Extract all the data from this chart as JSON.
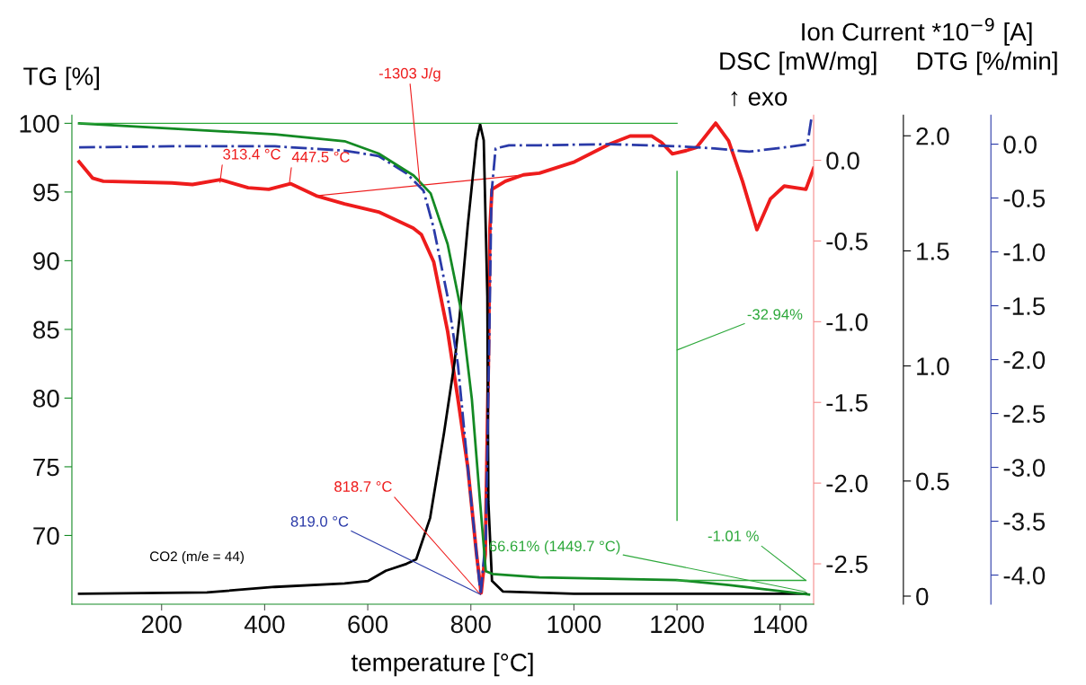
{
  "chart_data": [
    {
      "type": "line",
      "xlabel": "temperature [°C]",
      "ylabel": "TG [%]",
      "y2label": "DSC [mW/mg]",
      "y3label": "Ion Current *10$^{−9}$ [A]",
      "xlim": [
        26,
        1465
      ],
      "xticks": [
        200,
        400,
        600,
        800,
        1000,
        1200,
        1400
      ],
      "ylim": [
        65.0,
        100.6
      ],
      "yticks": [
        70,
        75,
        80,
        85,
        90,
        95,
        100
      ],
      "y2lim": [
        -2.75,
        0.28
      ],
      "y2ticks": [
        {
          "value": -2.5,
          "label": "-2.5"
        },
        {
          "value": -2.0,
          "label": "-2.0"
        },
        {
          "value": -1.5,
          "label": "-1.5"
        },
        {
          "value": -1.0,
          "label": "-1.0"
        },
        {
          "value": -0.5,
          "label": "-0.5"
        },
        {
          "value": 0,
          "label": "0.0"
        }
      ],
      "y3lim": [
        -0.035,
        2.09
      ],
      "y3ticks": [
        0,
        0.5,
        {
          "value": 1,
          "label": "1.0"
        },
        1.5,
        {
          "value": 2,
          "label": "2.0"
        }
      ],
      "grid": false,
      "marker": "none",
      "series": [
        {
          "color": "#148a24",
          "x": [
            40,
            420,
            555,
            621,
            689,
            722,
            755,
            782,
            802,
            818,
            829,
            842,
            933,
            1200,
            1300,
            1456
          ],
          "values": [
            100,
            99.2,
            98.7,
            97.8,
            96.2,
            94.9,
            91.2,
            86.2,
            79.9,
            72.4,
            67.4,
            67.2,
            66.95,
            66.76,
            66.4,
            65.7
          ]
        },
        {
          "color": "#ee1c1c",
          "axis": "y2",
          "x": [
            40,
            66,
            87,
            220,
            260,
            314,
            368,
            408,
            450,
            500,
            555,
            621,
            688,
            704,
            728,
            755,
            775,
            794,
            811,
            820,
            828,
            834,
            837,
            841,
            867,
            902,
            933,
            1001,
            1069,
            1109,
            1151,
            1170,
            1191,
            1218,
            1238,
            1275,
            1300,
            1327,
            1355,
            1381,
            1408,
            1450,
            1465
          ],
          "values": [
            -0.01,
            -0.11,
            -0.13,
            -0.14,
            -0.15,
            -0.12,
            -0.17,
            -0.18,
            -0.145,
            -0.22,
            -0.27,
            -0.32,
            -0.42,
            -0.46,
            -0.63,
            -1.06,
            -1.48,
            -1.9,
            -2.44,
            -2.68,
            -2.44,
            -1.27,
            -0.42,
            -0.18,
            -0.13,
            -0.09,
            -0.08,
            -0.01,
            0.1,
            0.15,
            0.15,
            0.11,
            0.04,
            0.06,
            0.08,
            0.23,
            0.12,
            -0.13,
            -0.43,
            -0.24,
            -0.16,
            -0.18,
            -0.05
          ]
        },
        {
          "name": "CO2 (m/e = 44)",
          "color": "#000000",
          "axis": "y3",
          "x": [
            40,
            288,
            420,
            555,
            601,
            635,
            675,
            694,
            721,
            748,
            768,
            778,
            794,
            811,
            818,
            825,
            832,
            834,
            841,
            862,
            1000,
            1200,
            1450
          ],
          "values": [
            0.01,
            0.016,
            0.04,
            0.055,
            0.066,
            0.11,
            0.14,
            0.16,
            0.34,
            0.71,
            1.01,
            1.21,
            1.61,
            1.98,
            2.05,
            1.98,
            1.3,
            0.41,
            0.066,
            0.02,
            0.01,
            0.01,
            0.01
          ]
        },
        {
          "color": "#2ca83a",
          "x": [
            40,
            1200
          ],
          "values": [
            100,
            100
          ]
        },
        {
          "color": "#2ca83a",
          "x": [
            1200,
            1200
          ],
          "values": [
            96.5,
            71.1
          ]
        },
        {
          "color": "#2ca83a",
          "x": [
            1200,
            1450
          ],
          "values": [
            66.73,
            66.73
          ]
        },
        {
          "color": "#ee1c1c",
          "axis": "y2",
          "x": [
            500,
            905
          ],
          "values": [
            -0.22,
            -0.09
          ]
        }
      ],
      "annotations": [
        {
          "text": "313.4 °C",
          "x": 313.4,
          "y": 95.7
        },
        {
          "text": "447.5 °C",
          "x": 447.5,
          "y": 95.5
        },
        {
          "text": "-1303 J/g",
          "x": 701,
          "y": 95.6
        },
        {
          "text": "818.7 °C",
          "x": 818.7,
          "y": 65.7
        },
        {
          "text": "819.0 °C",
          "x": 819.0,
          "y": 65.7
        },
        {
          "text": "-32.94%",
          "x": 1200,
          "y": 83.5
        },
        {
          "text": "66.61% (1449.7 °C)",
          "x": 1449.7,
          "y": 65.9
        },
        {
          "text": "-1.01 %",
          "x": 1449.7,
          "y": 66.73
        },
        "↑ exo"
      ]
    },
    {
      "type": "line",
      "ylabel": "DTG [%/min]",
      "xlim": [
        26,
        1465
      ],
      "ylim": [
        -4.27,
        0.27
      ],
      "tick_labels": "y",
      "yticks": [
        {
          "value": -4.0,
          "label": "-4.0"
        },
        {
          "value": -3.5,
          "label": "-3.5"
        },
        {
          "value": -3.0,
          "label": "-3.0"
        },
        {
          "value": -2.5,
          "label": "-2.5"
        },
        {
          "value": -2.0,
          "label": "-2.0"
        },
        {
          "value": -1.5,
          "label": "-1.5"
        },
        {
          "value": -1.0,
          "label": "-1.0"
        },
        {
          "value": -0.5,
          "label": "-0.5"
        },
        {
          "value": 0,
          "label": "0.0"
        }
      ],
      "marker": "none",
      "series": [
        {
          "color": "#2a3aa8",
          "line_style": "dashdot",
          "x": [
            40,
            220,
            420,
            555,
            621,
            675,
            708,
            728,
            755,
            775,
            794,
            811,
            819,
            829,
            836,
            840,
            848,
            874,
            933,
            1069,
            1205,
            1273,
            1340,
            1408,
            1453,
            1460,
            1462
          ],
          "values": [
            -0.03,
            -0.02,
            -0.02,
            -0.06,
            -0.11,
            -0.27,
            -0.43,
            -0.78,
            -1.42,
            -2.05,
            -3.0,
            -3.8,
            -4.18,
            -3.65,
            -1.73,
            -0.46,
            -0.04,
            -0.01,
            -0.01,
            0.0,
            -0.02,
            -0.04,
            -0.07,
            -0.03,
            0.0,
            0.22,
            0.25
          ]
        }
      ]
    }
  ]
}
